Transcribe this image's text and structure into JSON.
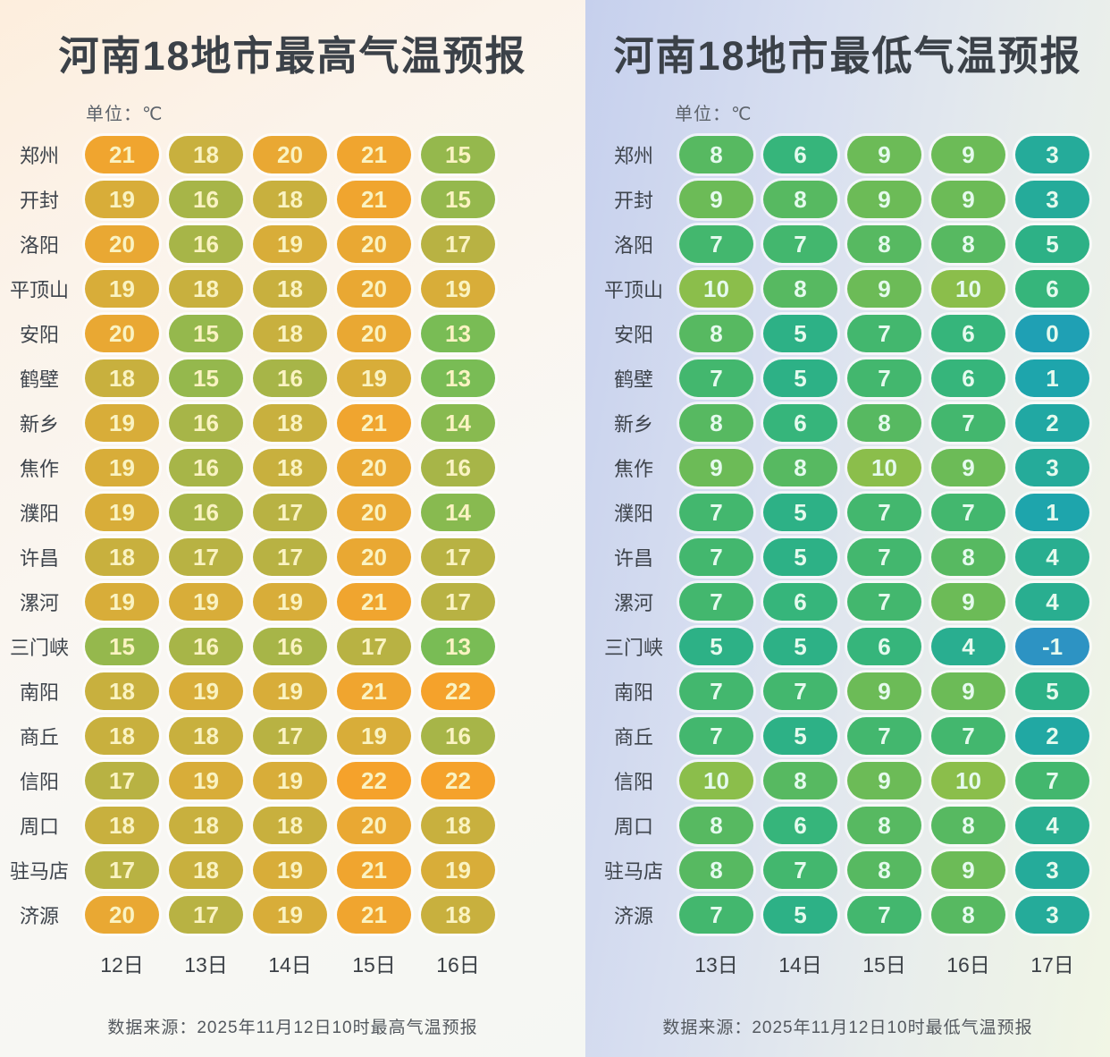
{
  "chart_data": [
    {
      "type": "heatmap",
      "title": "河南18地市最高气温预报",
      "unit": "单位：℃",
      "columns": [
        "12日",
        "13日",
        "14日",
        "15日",
        "16日"
      ],
      "rows": [
        {
          "city": "郑州",
          "values": [
            21,
            18,
            20,
            21,
            15
          ]
        },
        {
          "city": "开封",
          "values": [
            19,
            16,
            18,
            21,
            15
          ]
        },
        {
          "city": "洛阳",
          "values": [
            20,
            16,
            19,
            20,
            17
          ]
        },
        {
          "city": "平顶山",
          "values": [
            19,
            18,
            18,
            20,
            19
          ]
        },
        {
          "city": "安阳",
          "values": [
            20,
            15,
            18,
            20,
            13
          ]
        },
        {
          "city": "鹤壁",
          "values": [
            18,
            15,
            16,
            19,
            13
          ]
        },
        {
          "city": "新乡",
          "values": [
            19,
            16,
            18,
            21,
            14
          ]
        },
        {
          "city": "焦作",
          "values": [
            19,
            16,
            18,
            20,
            16
          ]
        },
        {
          "city": "濮阳",
          "values": [
            19,
            16,
            17,
            20,
            14
          ]
        },
        {
          "city": "许昌",
          "values": [
            18,
            17,
            17,
            20,
            17
          ]
        },
        {
          "city": "漯河",
          "values": [
            19,
            19,
            19,
            21,
            17
          ]
        },
        {
          "city": "三门峡",
          "values": [
            15,
            16,
            16,
            17,
            13
          ]
        },
        {
          "city": "南阳",
          "values": [
            18,
            19,
            19,
            21,
            22
          ]
        },
        {
          "city": "商丘",
          "values": [
            18,
            18,
            17,
            19,
            16
          ]
        },
        {
          "city": "信阳",
          "values": [
            17,
            19,
            19,
            22,
            22
          ]
        },
        {
          "city": "周口",
          "values": [
            18,
            18,
            18,
            20,
            18
          ]
        },
        {
          "city": "驻马店",
          "values": [
            17,
            18,
            19,
            21,
            19
          ]
        },
        {
          "city": "济源",
          "values": [
            20,
            17,
            19,
            21,
            18
          ]
        }
      ],
      "source": "数据来源：2025年11月12日10时最高气温预报",
      "value_range": [
        13,
        22
      ],
      "color_scale": {
        "13": "#79BC55",
        "14": "#88BA50",
        "15": "#95B84D",
        "16": "#A7B548",
        "17": "#B8B243",
        "18": "#C8B03E",
        "19": "#D8AD39",
        "20": "#E9A833",
        "21": "#F0A52F",
        "22": "#F5A22B"
      },
      "cell_text_color": "#FAF3C2"
    },
    {
      "type": "heatmap",
      "title": "河南18地市最低气温预报",
      "unit": "单位：℃",
      "columns": [
        "13日",
        "14日",
        "15日",
        "16日",
        "17日"
      ],
      "rows": [
        {
          "city": "郑州",
          "values": [
            8,
            6,
            9,
            9,
            3
          ]
        },
        {
          "city": "开封",
          "values": [
            9,
            8,
            9,
            9,
            3
          ]
        },
        {
          "city": "洛阳",
          "values": [
            7,
            7,
            8,
            8,
            5
          ]
        },
        {
          "city": "平顶山",
          "values": [
            10,
            8,
            9,
            10,
            6
          ]
        },
        {
          "city": "安阳",
          "values": [
            8,
            5,
            7,
            6,
            0
          ]
        },
        {
          "city": "鹤壁",
          "values": [
            7,
            5,
            7,
            6,
            1
          ]
        },
        {
          "city": "新乡",
          "values": [
            8,
            6,
            8,
            7,
            2
          ]
        },
        {
          "city": "焦作",
          "values": [
            9,
            8,
            10,
            9,
            3
          ]
        },
        {
          "city": "濮阳",
          "values": [
            7,
            5,
            7,
            7,
            1
          ]
        },
        {
          "city": "许昌",
          "values": [
            7,
            5,
            7,
            8,
            4
          ]
        },
        {
          "city": "漯河",
          "values": [
            7,
            6,
            7,
            9,
            4
          ]
        },
        {
          "city": "三门峡",
          "values": [
            5,
            5,
            6,
            4,
            -1
          ]
        },
        {
          "city": "南阳",
          "values": [
            7,
            7,
            9,
            9,
            5
          ]
        },
        {
          "city": "商丘",
          "values": [
            7,
            5,
            7,
            7,
            2
          ]
        },
        {
          "city": "信阳",
          "values": [
            10,
            8,
            9,
            10,
            7
          ]
        },
        {
          "city": "周口",
          "values": [
            8,
            6,
            8,
            8,
            4
          ]
        },
        {
          "city": "驻马店",
          "values": [
            8,
            7,
            8,
            9,
            3
          ]
        },
        {
          "city": "济源",
          "values": [
            7,
            5,
            7,
            8,
            3
          ]
        }
      ],
      "source": "数据来源：2025年11月12日10时最低气温预报",
      "value_range": [
        -1,
        10
      ],
      "color_scale": {
        "-1": "#2D93C3",
        "0": "#1FA0B4",
        "1": "#1EA5AC",
        "2": "#21A8A3",
        "3": "#25AB9A",
        "4": "#29AE90",
        "5": "#2DB186",
        "6": "#36B57B",
        "7": "#43B76E",
        "8": "#57B961",
        "9": "#6CBB57",
        "10": "#8BBE4B"
      },
      "cell_text_color": "#E5FAEE"
    }
  ]
}
